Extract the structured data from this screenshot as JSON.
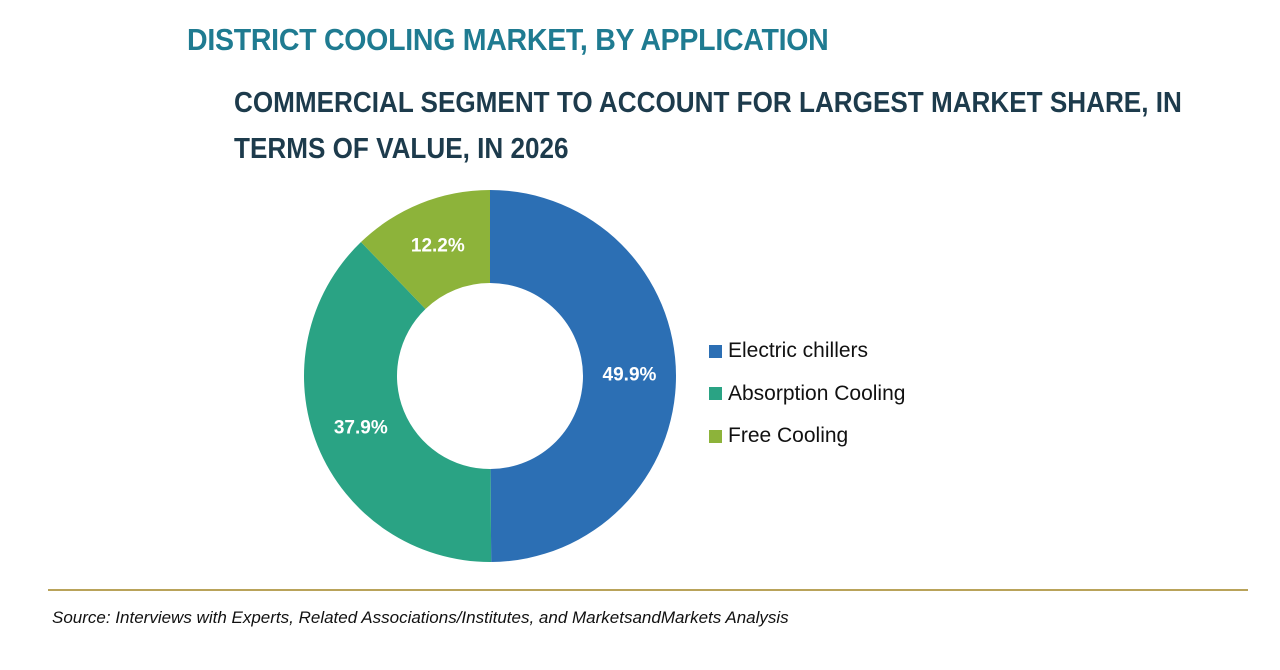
{
  "title": "DISTRICT COOLING MARKET, BY APPLICATION",
  "subtitle": "COMMERCIAL SEGMENT TO ACCOUNT FOR LARGEST MARKET SHARE, IN TERMS OF VALUE, IN 2026",
  "source": "Source: Interviews with Experts, Related Associations/Institutes, and MarketsandMarkets Analysis",
  "colors": {
    "title": "#1f7b91",
    "subtitle": "#1d3b4c",
    "divider": "#b9a35a"
  },
  "chart_data": {
    "type": "pie",
    "variant": "donut",
    "title": "DISTRICT COOLING MARKET, BY APPLICATION",
    "subtitle": "COMMERCIAL SEGMENT TO ACCOUNT FOR LARGEST MARKET SHARE, IN TERMS OF VALUE, IN 2026",
    "unit": "%",
    "legend_position": "right",
    "slices": [
      {
        "name": "Electric chillers",
        "value": 49.9,
        "label": "49.9%",
        "color": "#2c6fb4"
      },
      {
        "name": "Absorption Cooling",
        "value": 37.9,
        "label": "37.9%",
        "color": "#2aa384"
      },
      {
        "name": "Free Cooling",
        "value": 12.2,
        "label": "12.2%",
        "color": "#8db33a"
      }
    ]
  }
}
